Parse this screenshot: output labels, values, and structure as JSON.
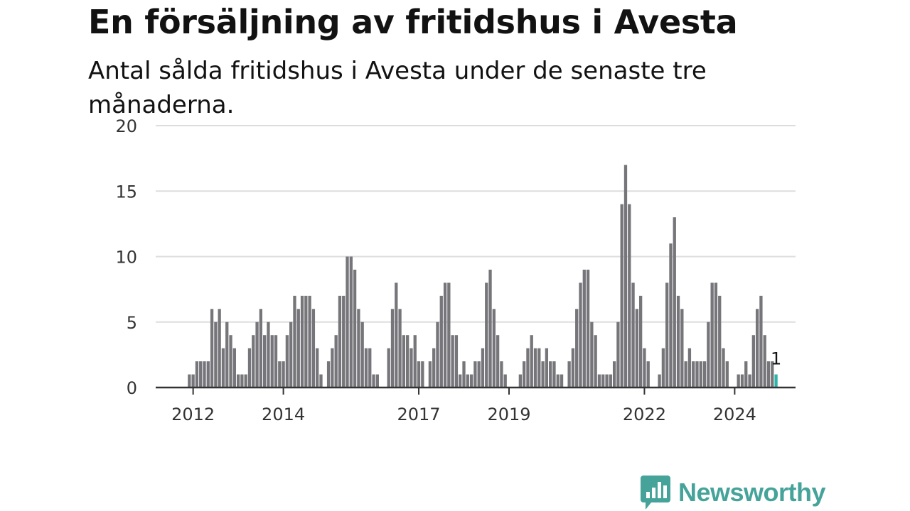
{
  "header": {
    "title": "En försäljning av fritidshus i Avesta",
    "subtitle": "Antal sålda fritidshus i Avesta under de senaste tre månaderna."
  },
  "brand": {
    "name": "Newsworthy",
    "icon": "newsworthy-logo-icon",
    "color": "#45a39a"
  },
  "colors": {
    "bar": "#76757a",
    "highlight": "#2bb4a8",
    "grid": "#dddddd",
    "axis": "#333333"
  },
  "chart_data": {
    "type": "bar",
    "start": "2011-11",
    "ylim": [
      0,
      20
    ],
    "yticks": [
      0,
      5,
      10,
      15,
      20
    ],
    "xticks": [
      {
        "label": "2012",
        "date": "2012-01"
      },
      {
        "label": "2014",
        "date": "2014-01"
      },
      {
        "label": "2017",
        "date": "2017-01"
      },
      {
        "label": "2019",
        "date": "2019-01"
      },
      {
        "label": "2022",
        "date": "2022-01"
      },
      {
        "label": "2024",
        "date": "2024-01"
      }
    ],
    "values": [
      0,
      1,
      1,
      2,
      2,
      2,
      2,
      6,
      5,
      6,
      3,
      5,
      4,
      3,
      1,
      1,
      1,
      3,
      4,
      5,
      6,
      4,
      5,
      4,
      4,
      2,
      2,
      4,
      5,
      7,
      6,
      7,
      7,
      7,
      6,
      3,
      1,
      0,
      2,
      3,
      4,
      7,
      7,
      10,
      10,
      9,
      6,
      5,
      3,
      3,
      1,
      1,
      0,
      0,
      3,
      6,
      8,
      6,
      4,
      4,
      3,
      4,
      2,
      2,
      0,
      2,
      3,
      5,
      7,
      8,
      8,
      4,
      4,
      1,
      2,
      1,
      1,
      2,
      2,
      3,
      8,
      9,
      6,
      4,
      2,
      1,
      0,
      0,
      0,
      1,
      2,
      3,
      4,
      3,
      3,
      2,
      3,
      2,
      2,
      1,
      1,
      0,
      2,
      3,
      6,
      8,
      9,
      9,
      5,
      4,
      1,
      1,
      1,
      1,
      2,
      5,
      14,
      17,
      14,
      8,
      6,
      7,
      3,
      2,
      0,
      0,
      1,
      3,
      8,
      11,
      13,
      7,
      6,
      2,
      3,
      2,
      2,
      2,
      2,
      5,
      8,
      8,
      7,
      3,
      2,
      0,
      0,
      1,
      1,
      2,
      1,
      4,
      6,
      7,
      4,
      2,
      2,
      1
    ],
    "highlight_label": "1"
  }
}
